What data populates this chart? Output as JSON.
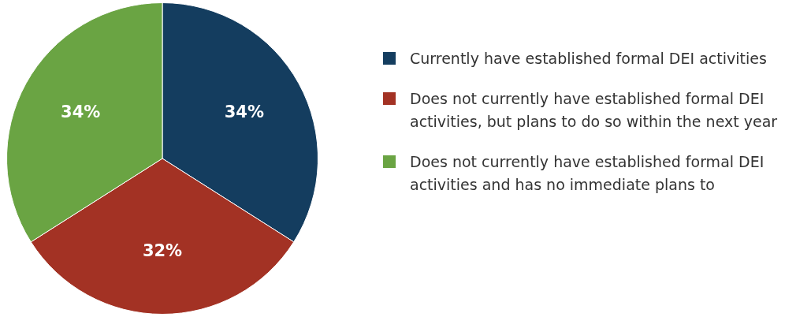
{
  "chart_data": {
    "type": "pie",
    "categories": [
      "Currently have established formal DEI activities",
      "Does not currently have established formal DEI activities, but plans to do so within the next year",
      "Does not currently have established formal DEI activities and has no immediate plans to"
    ],
    "values": [
      34,
      32,
      34
    ],
    "colors": [
      "#143d5f",
      "#a33224",
      "#6aa443"
    ],
    "value_labels": [
      "34%",
      "32%",
      "34%"
    ],
    "legend": "right"
  }
}
